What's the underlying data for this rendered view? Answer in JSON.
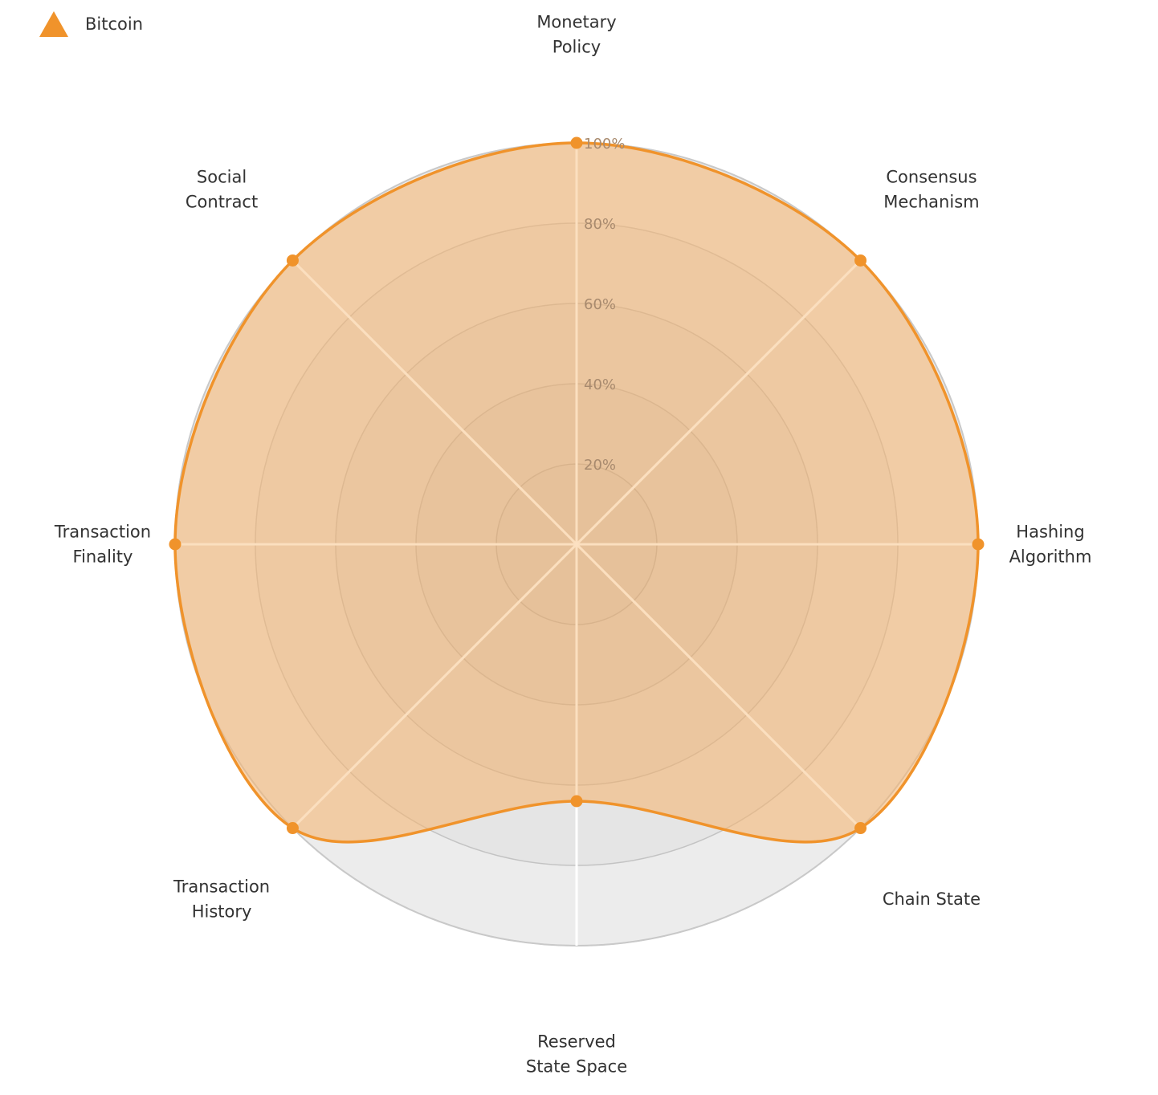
{
  "chart_data": {
    "type": "radar",
    "title": "",
    "axes": [
      [
        "Monetary",
        "Policy"
      ],
      [
        "Consensus",
        "Mechanism"
      ],
      [
        "Hashing",
        "Algorithm"
      ],
      [
        "Chain State"
      ],
      [
        "Reserved",
        "State Space"
      ],
      [
        "Transaction",
        "History"
      ],
      [
        "Transaction",
        "Finality"
      ],
      [
        "Social",
        "Contract"
      ]
    ],
    "ticks": [
      "20%",
      "40%",
      "60%",
      "80%",
      "100%"
    ],
    "tick_values": [
      20,
      40,
      60,
      80,
      100
    ],
    "range": [
      0,
      100
    ],
    "series": [
      {
        "name": "Bitcoin",
        "values": [
          100,
          100,
          100,
          100,
          64,
          100,
          100,
          100
        ],
        "color": "#f0932b"
      }
    ],
    "legend": {
      "position": "top-left",
      "label": "Bitcoin",
      "marker": "triangle-icon"
    },
    "colors": {
      "series_line": "#f0932b",
      "series_fill": "#f5b572",
      "grid_ring": "#c9c9c9",
      "background": "#f3f3f3",
      "spoke": "#ffffff",
      "tick_text": "#a88a6e",
      "label_text": "#333333"
    }
  }
}
